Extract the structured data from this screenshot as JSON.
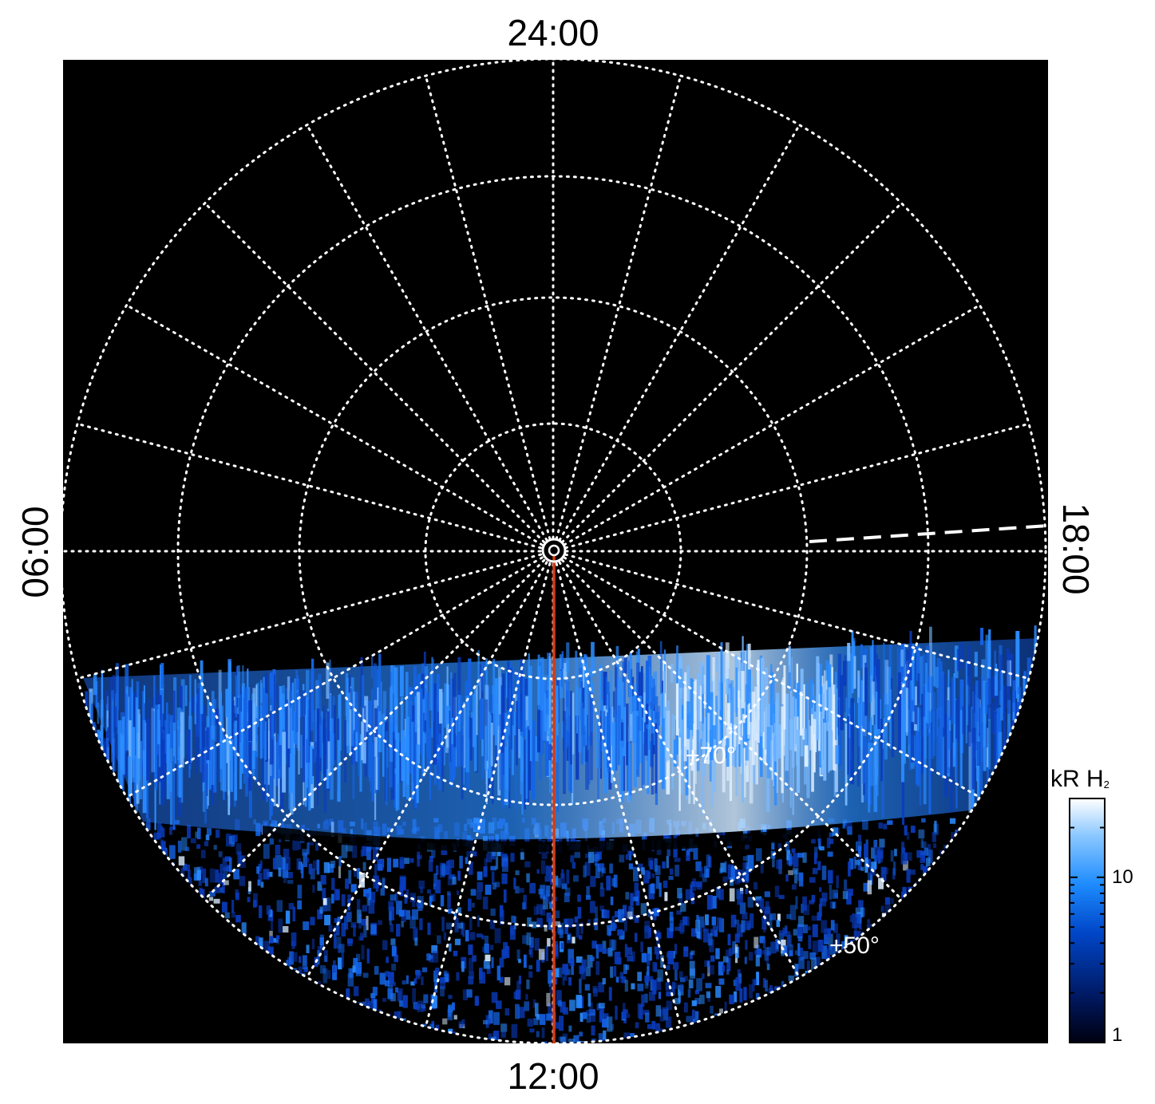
{
  "labels": {
    "top": "24:00",
    "bottom": "12:00",
    "left": "06:00",
    "right": "18:00",
    "lat_inner": "+70°",
    "lat_outer": "+50°"
  },
  "colorbar": {
    "title_main": "kR H",
    "title_sub": "2",
    "ticks": [
      {
        "label": "10",
        "value": 10
      },
      {
        "label": "1",
        "value": 1
      }
    ],
    "range": [
      1,
      30
    ],
    "scale": "log",
    "colors": [
      "#000010",
      "#001a66",
      "#0046c8",
      "#1e8cff",
      "#8cc8ff",
      "#ffffff"
    ]
  },
  "map": {
    "background": "#000000",
    "grid_color": "#ffffff",
    "meridian_color": "#d23c14",
    "aurora_colors": [
      "#001a66",
      "#0a3cbe",
      "#1464e6",
      "#2a8cff",
      "#7abaff",
      "#dceeff"
    ]
  }
}
